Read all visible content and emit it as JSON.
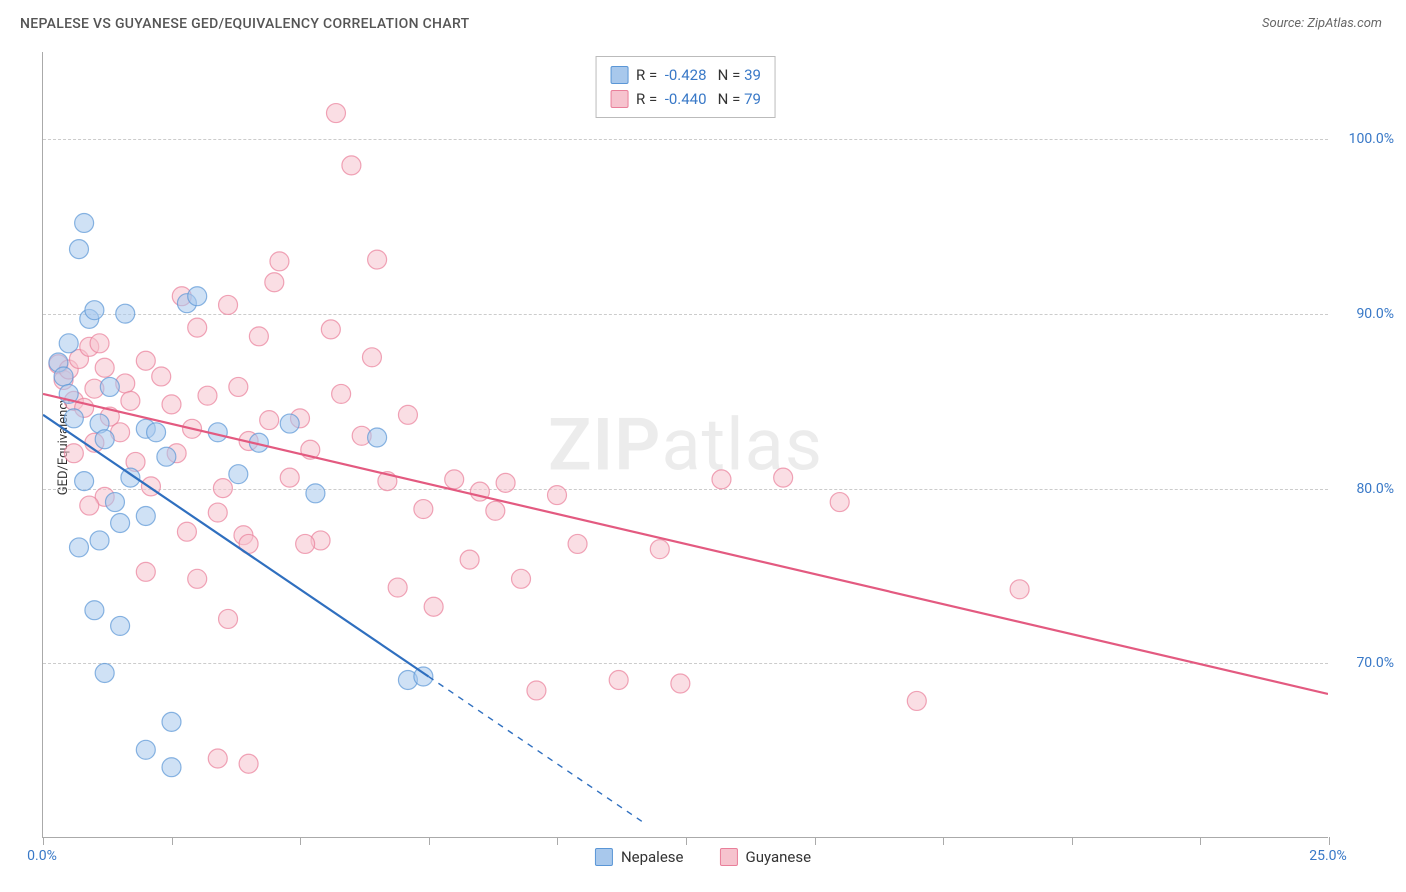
{
  "header": {
    "title": "NEPALESE VS GUYANESE GED/EQUIVALENCY CORRELATION CHART",
    "source": "Source: ZipAtlas.com"
  },
  "axes": {
    "ylabel": "GED/Equivalency",
    "ylim": [
      60,
      105
    ],
    "xlim": [
      0,
      25
    ],
    "ytick_labels": [
      "70.0%",
      "80.0%",
      "90.0%",
      "100.0%"
    ],
    "ytick_values": [
      70,
      80,
      90,
      100
    ],
    "xtick_labels": [
      "0.0%",
      "25.0%"
    ],
    "xtick_values": [
      0,
      25
    ],
    "xtick_minor_step": 2.5,
    "grid_color": "#cccccc",
    "axis_color": "#aaaaaa",
    "tick_label_color": "#3878c7",
    "axis_label_fontsize": 13,
    "tick_label_fontsize": 14
  },
  "legend_top": {
    "rows": [
      {
        "swatch_fill": "#a8c8ec",
        "swatch_stroke": "#5a96d6",
        "r_label": "R =",
        "r_value": "-0.428",
        "n_label": "N =",
        "n_value": "39"
      },
      {
        "swatch_fill": "#f6c3ce",
        "swatch_stroke": "#e97f9a",
        "r_label": "R =",
        "r_value": "-0.440",
        "n_label": "N =",
        "n_value": "79"
      }
    ]
  },
  "legend_bottom": {
    "items": [
      {
        "swatch_fill": "#a8c8ec",
        "swatch_stroke": "#5a96d6",
        "label": "Nepalese"
      },
      {
        "swatch_fill": "#f6c3ce",
        "swatch_stroke": "#e97f9a",
        "label": "Guyanese"
      }
    ]
  },
  "watermark": {
    "part1": "ZIP",
    "part2": "atlas"
  },
  "series": [
    {
      "name": "Nepalese",
      "marker_fill": "#a8c8ec",
      "marker_stroke": "#5a96d6",
      "marker_opacity": 0.55,
      "marker_radius": 9.5,
      "line_color": "#2f6fbf",
      "line_width": 2.2,
      "trend": {
        "x1": 0,
        "y1": 84.2,
        "x2": 7.5,
        "y2": 69.2,
        "solid_to_x": 7.5,
        "dash_to_x": 11.7,
        "dash_to_y": 60.8
      },
      "points": [
        [
          0.3,
          87.2
        ],
        [
          0.4,
          86.4
        ],
        [
          0.5,
          85.4
        ],
        [
          0.5,
          88.3
        ],
        [
          0.6,
          84.0
        ],
        [
          0.7,
          93.7
        ],
        [
          0.8,
          95.2
        ],
        [
          0.9,
          89.7
        ],
        [
          1.0,
          90.2
        ],
        [
          1.1,
          83.7
        ],
        [
          1.2,
          82.8
        ],
        [
          1.6,
          90.0
        ],
        [
          1.3,
          85.8
        ],
        [
          1.4,
          79.2
        ],
        [
          1.5,
          78.0
        ],
        [
          2.0,
          83.4
        ],
        [
          1.7,
          80.6
        ],
        [
          1.1,
          77.0
        ],
        [
          2.2,
          83.2
        ],
        [
          2.4,
          81.8
        ],
        [
          2.8,
          90.6
        ],
        [
          0.8,
          80.4
        ],
        [
          0.7,
          76.6
        ],
        [
          1.0,
          73.0
        ],
        [
          1.5,
          72.1
        ],
        [
          2.0,
          78.4
        ],
        [
          2.5,
          66.6
        ],
        [
          3.0,
          91.0
        ],
        [
          3.4,
          83.2
        ],
        [
          3.8,
          80.8
        ],
        [
          4.2,
          82.6
        ],
        [
          4.8,
          83.7
        ],
        [
          5.3,
          79.7
        ],
        [
          6.5,
          82.9
        ],
        [
          7.1,
          69.0
        ],
        [
          7.4,
          69.2
        ],
        [
          2.0,
          65.0
        ],
        [
          2.5,
          64.0
        ],
        [
          1.2,
          69.4
        ]
      ]
    },
    {
      "name": "Guyanese",
      "marker_fill": "#f6c3ce",
      "marker_stroke": "#e97f9a",
      "marker_opacity": 0.55,
      "marker_radius": 9.5,
      "line_color": "#e35a80",
      "line_width": 2.2,
      "trend": {
        "x1": 0,
        "y1": 85.4,
        "x2": 25,
        "y2": 68.2,
        "solid_to_x": 25,
        "dash_to_x": 25,
        "dash_to_y": 68.2
      },
      "points": [
        [
          0.3,
          87.1
        ],
        [
          0.4,
          86.2
        ],
        [
          0.5,
          86.8
        ],
        [
          0.6,
          85.0
        ],
        [
          0.7,
          87.4
        ],
        [
          0.8,
          84.6
        ],
        [
          0.9,
          88.1
        ],
        [
          1.0,
          85.7
        ],
        [
          1.0,
          82.6
        ],
        [
          1.2,
          86.9
        ],
        [
          1.3,
          84.1
        ],
        [
          1.5,
          83.2
        ],
        [
          1.6,
          86.0
        ],
        [
          1.7,
          85.0
        ],
        [
          1.8,
          81.5
        ],
        [
          2.0,
          87.3
        ],
        [
          2.1,
          80.1
        ],
        [
          2.3,
          86.4
        ],
        [
          2.5,
          84.8
        ],
        [
          2.6,
          82.0
        ],
        [
          2.7,
          91.0
        ],
        [
          2.9,
          83.4
        ],
        [
          3.0,
          89.2
        ],
        [
          3.2,
          85.3
        ],
        [
          3.4,
          78.6
        ],
        [
          3.5,
          80.0
        ],
        [
          3.6,
          90.5
        ],
        [
          3.8,
          85.8
        ],
        [
          3.9,
          77.3
        ],
        [
          4.0,
          82.7
        ],
        [
          4.2,
          88.7
        ],
        [
          4.4,
          83.9
        ],
        [
          4.6,
          93.0
        ],
        [
          4.8,
          80.6
        ],
        [
          5.0,
          84.0
        ],
        [
          5.2,
          82.2
        ],
        [
          5.4,
          77.0
        ],
        [
          5.6,
          89.1
        ],
        [
          5.8,
          85.4
        ],
        [
          5.7,
          101.5
        ],
        [
          6.0,
          98.5
        ],
        [
          6.2,
          83.0
        ],
        [
          6.4,
          87.5
        ],
        [
          6.7,
          80.4
        ],
        [
          6.9,
          74.3
        ],
        [
          7.1,
          84.2
        ],
        [
          7.4,
          78.8
        ],
        [
          7.6,
          73.2
        ],
        [
          6.5,
          93.1
        ],
        [
          8.0,
          80.5
        ],
        [
          8.3,
          75.9
        ],
        [
          8.5,
          79.8
        ],
        [
          8.8,
          78.7
        ],
        [
          9.0,
          80.3
        ],
        [
          9.3,
          74.8
        ],
        [
          9.6,
          68.4
        ],
        [
          10.0,
          79.6
        ],
        [
          10.4,
          76.8
        ],
        [
          4.0,
          76.8
        ],
        [
          3.6,
          72.5
        ],
        [
          3.0,
          74.8
        ],
        [
          2.8,
          77.5
        ],
        [
          11.2,
          69.0
        ],
        [
          12.0,
          76.5
        ],
        [
          12.4,
          68.8
        ],
        [
          13.2,
          80.5
        ],
        [
          14.4,
          80.6
        ],
        [
          15.5,
          79.2
        ],
        [
          17.0,
          67.8
        ],
        [
          19.0,
          74.2
        ],
        [
          3.4,
          64.5
        ],
        [
          2.0,
          75.2
        ],
        [
          1.2,
          79.5
        ],
        [
          0.9,
          79.0
        ],
        [
          0.6,
          82.0
        ],
        [
          4.5,
          91.8
        ],
        [
          5.1,
          76.8
        ],
        [
          4.0,
          64.2
        ],
        [
          1.1,
          88.3
        ]
      ]
    }
  ],
  "colors": {
    "background": "#ffffff",
    "title_color": "#555555",
    "source_color": "#666666"
  }
}
